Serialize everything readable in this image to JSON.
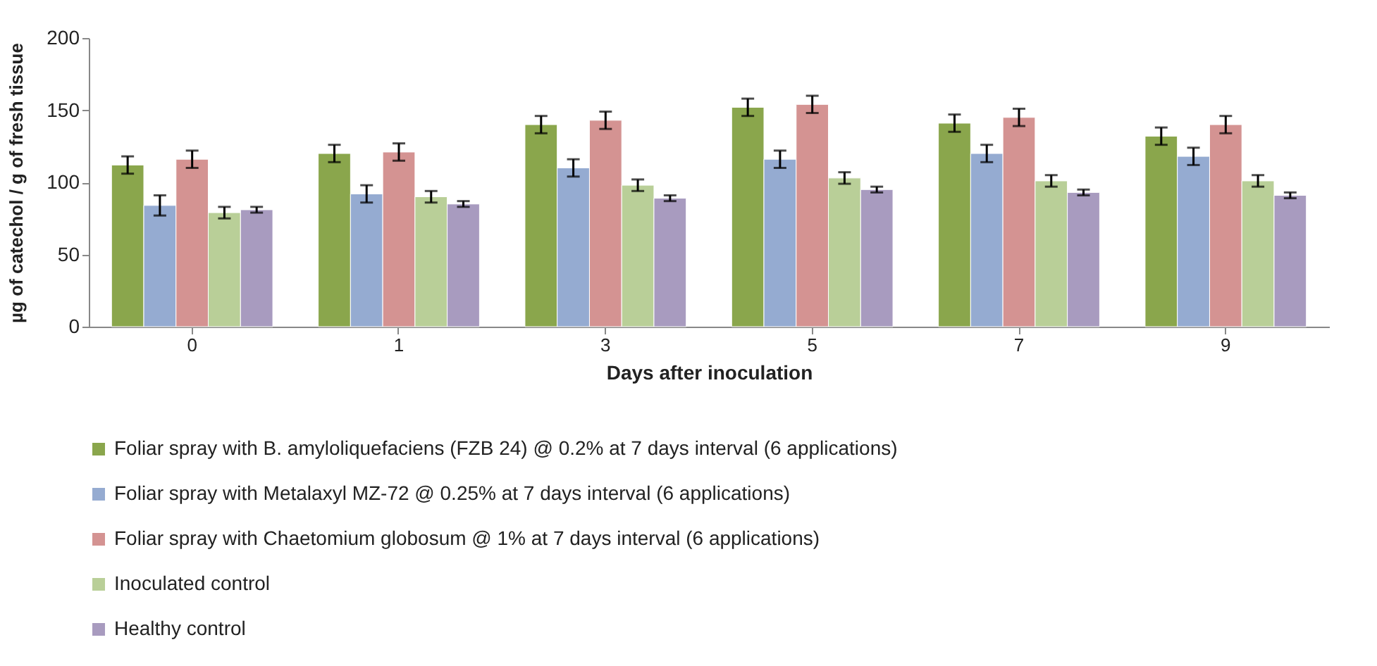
{
  "chart_data": {
    "type": "bar",
    "xlabel": "Days after inoculation",
    "ylabel": "µg of catechol / g of fresh tissue",
    "categories": [
      "0",
      "1",
      "3",
      "5",
      "7",
      "9"
    ],
    "ylim": [
      0,
      200
    ],
    "yticks": [
      0,
      50,
      100,
      150,
      200
    ],
    "grid": false,
    "legend": "bottom",
    "series": [
      {
        "name": "Foliar spray with B. amyloliquefaciens (FZB 24) @ 0.2% at 7 days interval (6 applications)",
        "color": "#8aa64c",
        "values": [
          112,
          120,
          140,
          152,
          141,
          132
        ],
        "errors": [
          6,
          6,
          6,
          6,
          6,
          6
        ]
      },
      {
        "name": "Foliar spray with Metalaxyl MZ-72 @ 0.25% at 7 days interval (6 applications)",
        "color": "#95abd1",
        "values": [
          84,
          92,
          110,
          116,
          120,
          118
        ],
        "errors": [
          7,
          6,
          6,
          6,
          6,
          6
        ]
      },
      {
        "name": "Foliar spray with Chaetomium globosum @ 1% at 7 days interval (6 applications)",
        "color": "#d49392",
        "values": [
          116,
          121,
          143,
          154,
          145,
          140
        ],
        "errors": [
          6,
          6,
          6,
          6,
          6,
          6
        ]
      },
      {
        "name": "Inoculated control",
        "color": "#b9cf98",
        "values": [
          79,
          90,
          98,
          103,
          101,
          101
        ],
        "errors": [
          4,
          4,
          4,
          4,
          4,
          4
        ]
      },
      {
        "name": "Healthy control",
        "color": "#a89bbf",
        "values": [
          81,
          85,
          89,
          95,
          93,
          91
        ],
        "errors": [
          2,
          2,
          2,
          2,
          2,
          2
        ]
      }
    ]
  }
}
